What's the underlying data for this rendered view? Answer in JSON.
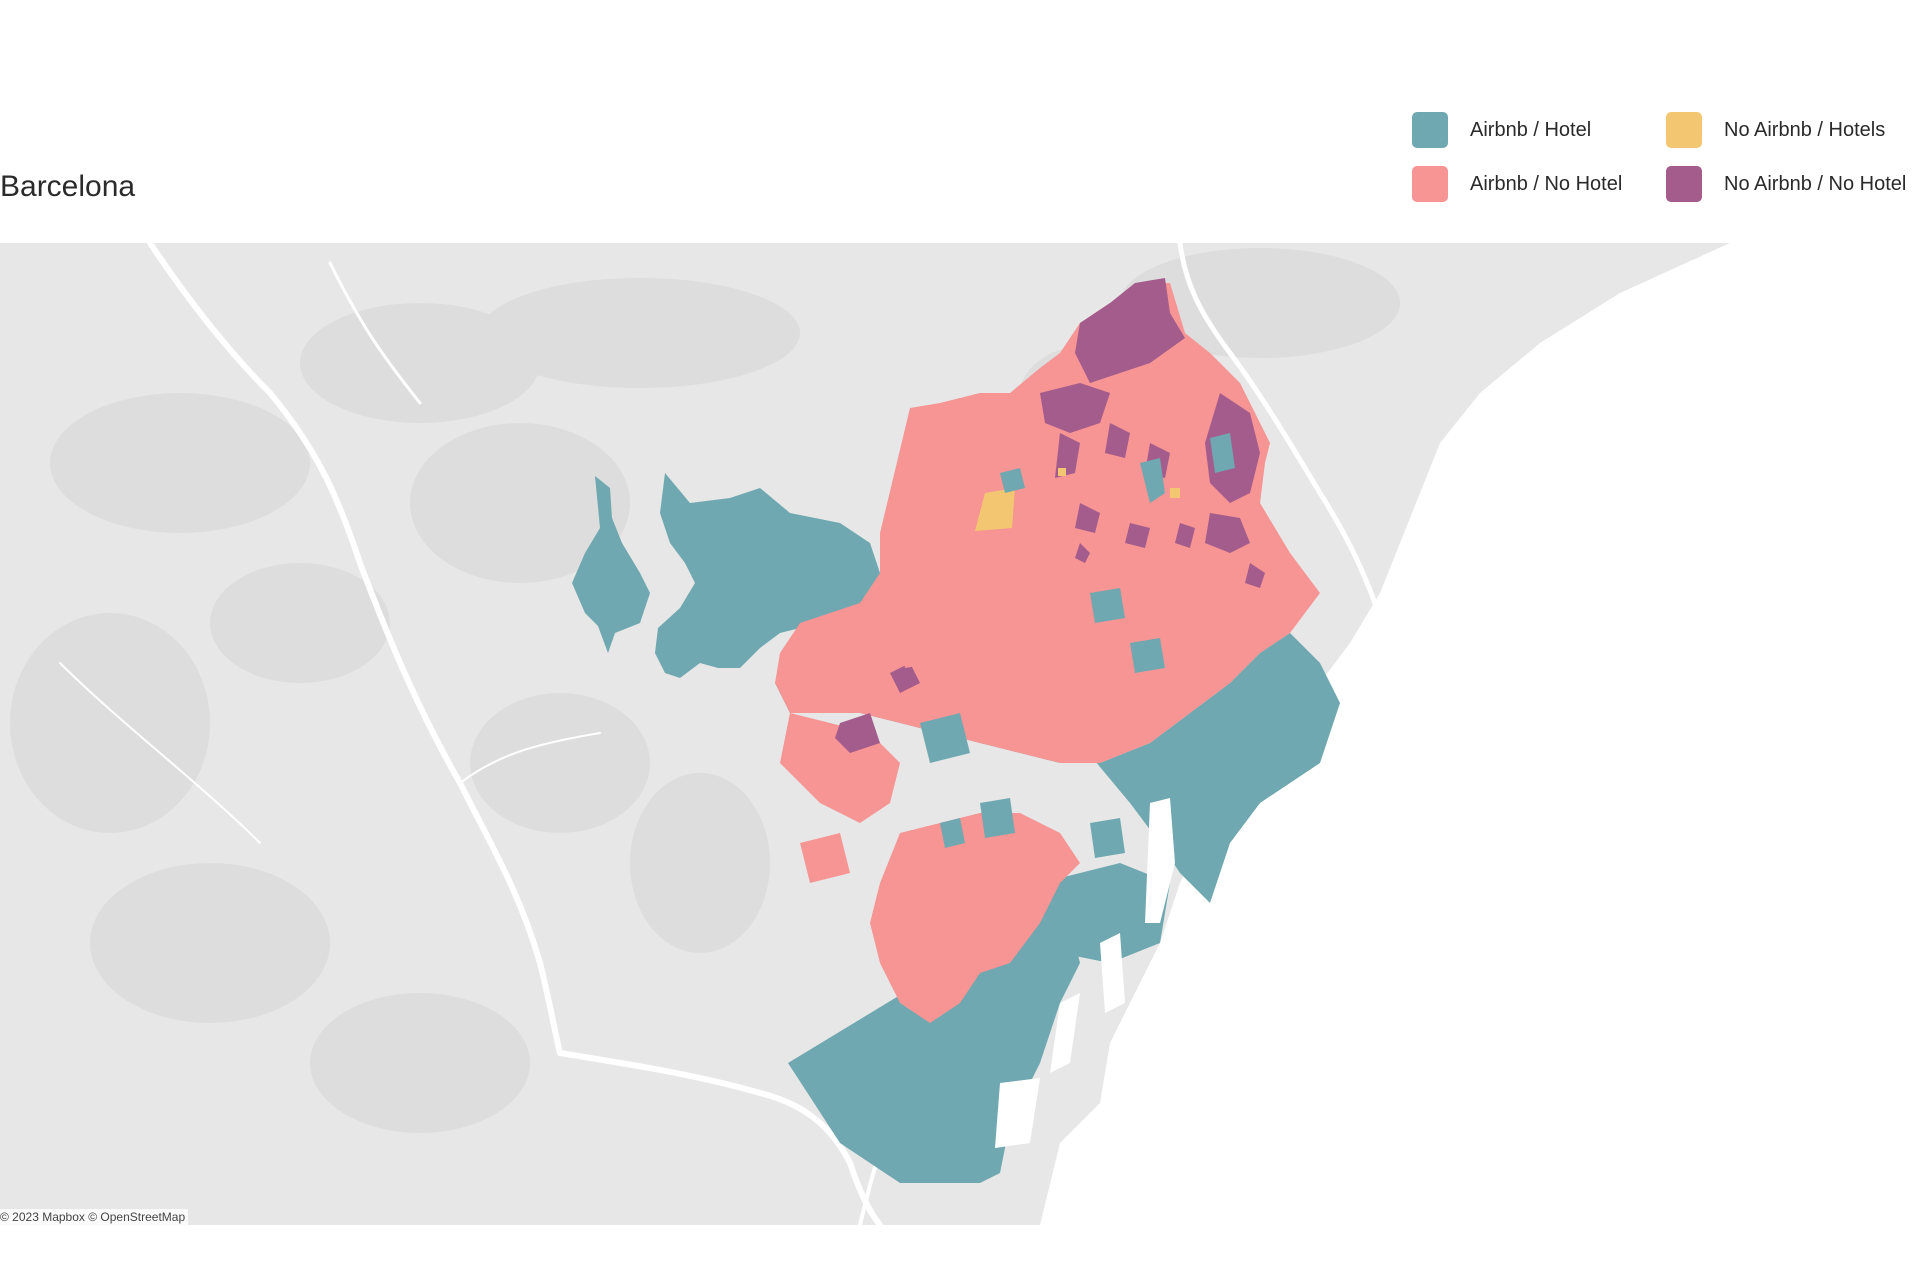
{
  "title": "Barcelona",
  "legend": [
    {
      "label": "Airbnb / Hotel",
      "color": "#6fa8b0"
    },
    {
      "label": "Airbnb / No Hotel",
      "color": "#f79494"
    },
    {
      "label": "No Airbnb / Hotels",
      "color": "#f3c772"
    },
    {
      "label": "No Airbnb / No Hotel",
      "color": "#a35c8c"
    }
  ],
  "map": {
    "land_color": "#e7e7e7",
    "sea_color": "#ffffff",
    "road_color": "#ffffff"
  },
  "attribution": {
    "mapbox": "© 2023 Mapbox",
    "osm": "© OpenStreetMap"
  }
}
